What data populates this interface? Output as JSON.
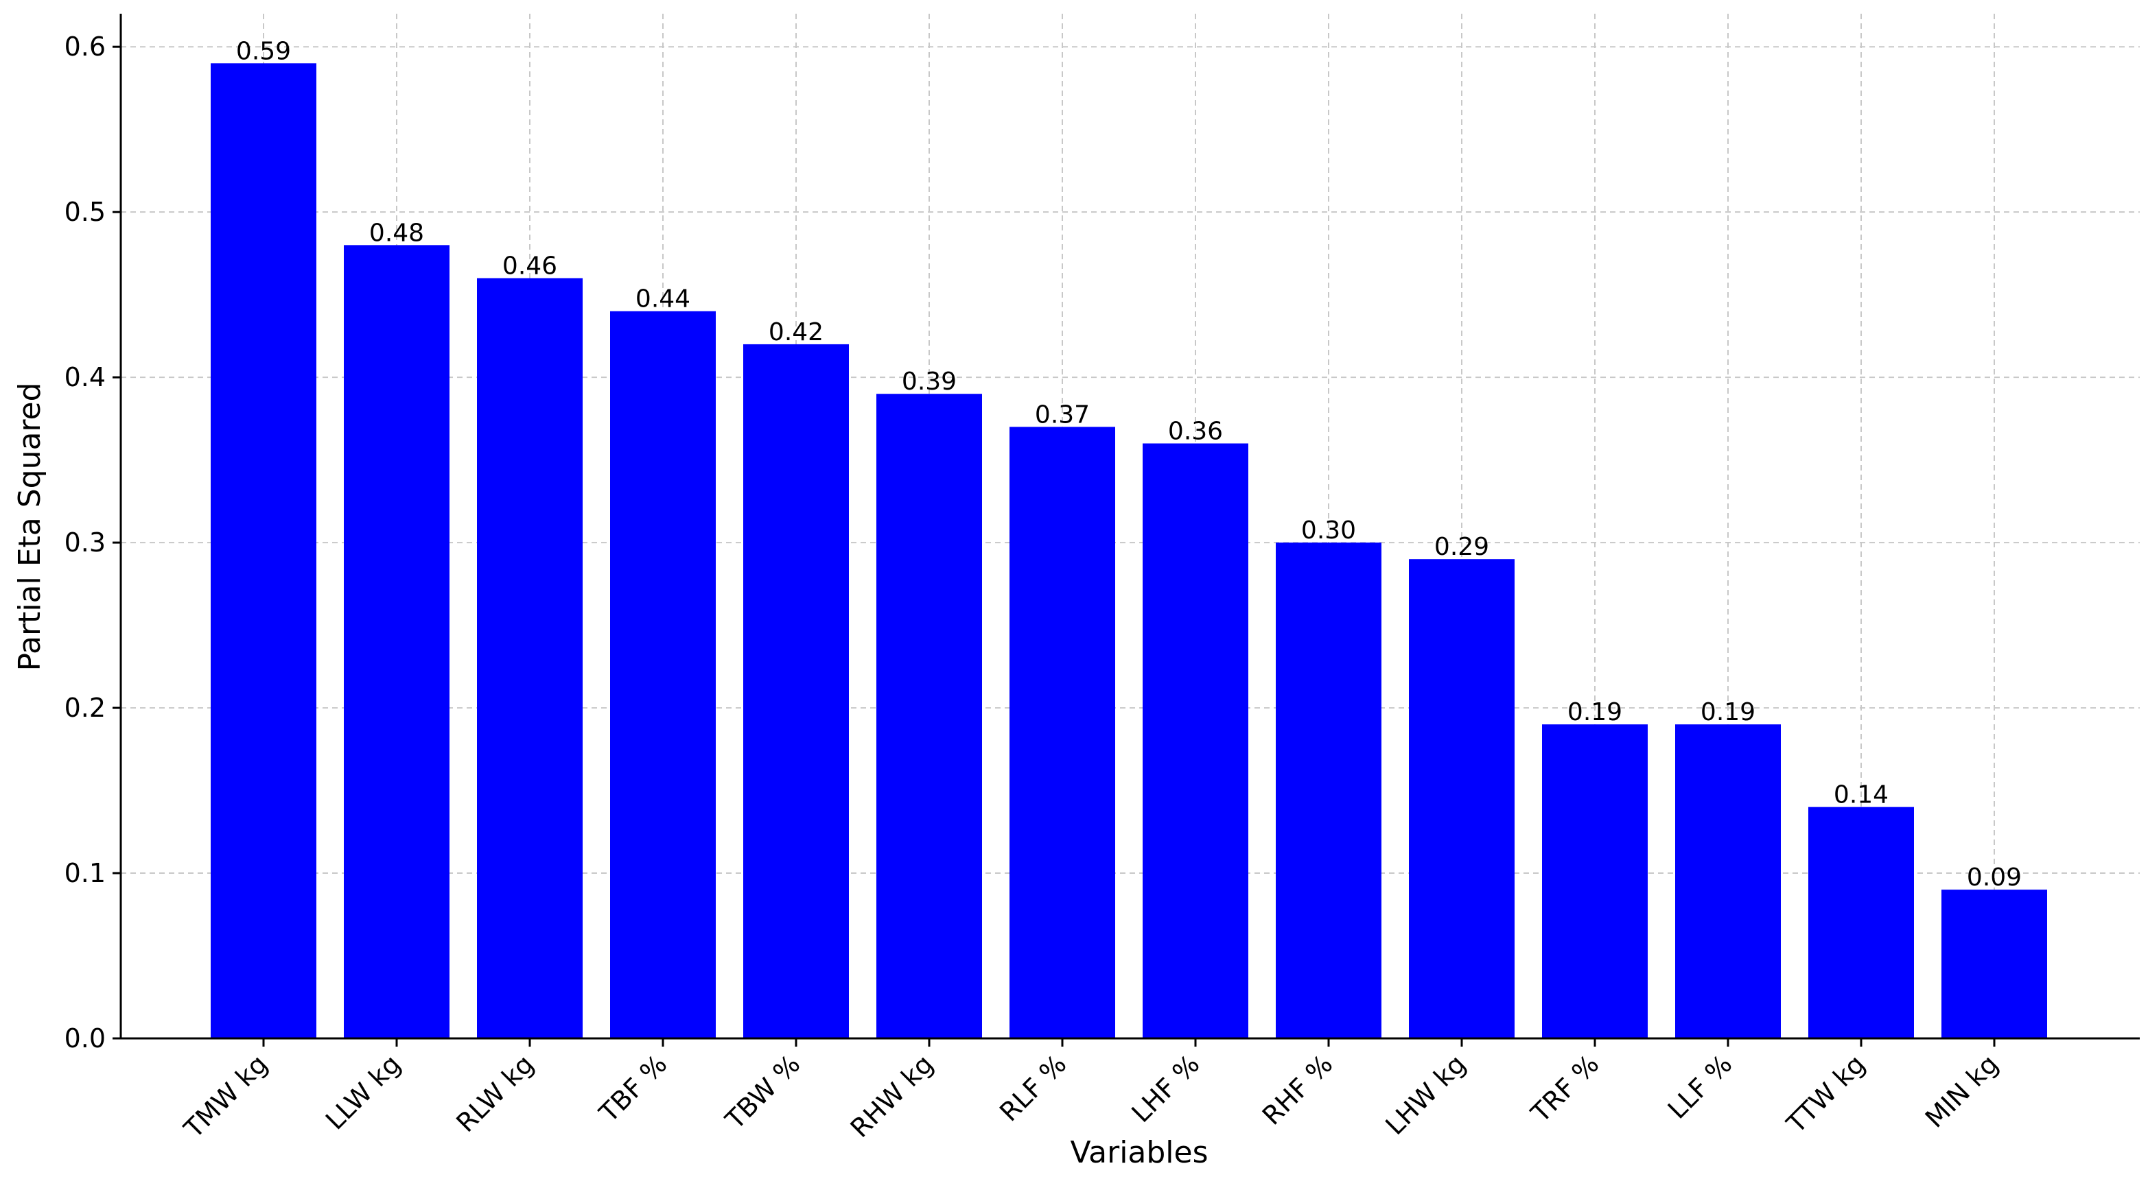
{
  "chart_data": {
    "type": "bar",
    "title": "",
    "xlabel": "Variables",
    "ylabel": "Partial Eta Squared",
    "categories": [
      "TMW kg",
      "LLW kg",
      "RLW kg",
      "TBF %",
      "TBW %",
      "RHW kg",
      "RLF %",
      "LHF %",
      "RHF %",
      "LHW kg",
      "TRF %",
      "LLF %",
      "TTW kg",
      "MIN kg"
    ],
    "values": [
      0.59,
      0.48,
      0.46,
      0.44,
      0.42,
      0.39,
      0.37,
      0.36,
      0.3,
      0.29,
      0.19,
      0.19,
      0.14,
      0.09
    ],
    "value_labels": [
      "0.59",
      "0.48",
      "0.46",
      "0.44",
      "0.42",
      "0.39",
      "0.37",
      "0.36",
      "0.30",
      "0.29",
      "0.19",
      "0.19",
      "0.14",
      "0.09"
    ],
    "ylim": [
      0.0,
      0.62
    ],
    "yticks": [
      0.0,
      0.1,
      0.2,
      0.3,
      0.4,
      0.5,
      0.6
    ],
    "ytick_labels": [
      "0.0",
      "0.1",
      "0.2",
      "0.3",
      "0.4",
      "0.5",
      "0.6"
    ],
    "grid": true,
    "bar_color": "#0000ff",
    "grid_color": "#c8c8c8"
  }
}
